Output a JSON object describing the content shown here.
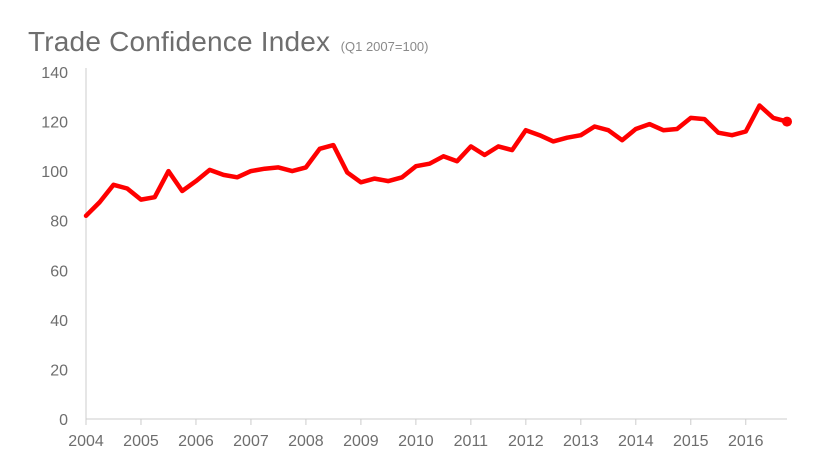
{
  "chart_data": {
    "type": "line",
    "title": "Trade Confidence Index",
    "subtitle": "(Q1 2007=100)",
    "xlabel": "",
    "ylabel": "",
    "ylim": [
      0,
      140
    ],
    "xlim": [
      2004.0,
      2016.75
    ],
    "y_ticks": [
      0,
      20,
      40,
      60,
      80,
      100,
      120,
      140
    ],
    "x_ticks": [
      2004,
      2005,
      2006,
      2007,
      2008,
      2009,
      2010,
      2011,
      2012,
      2013,
      2014,
      2015,
      2016
    ],
    "grid": false,
    "legend": "none",
    "colors": {
      "line": "#ff0000",
      "axis": "#cccccc",
      "text": "#6e6e6e"
    },
    "series": [
      {
        "x": [
          2004.0,
          2004.25,
          2004.5,
          2004.75,
          2005.0,
          2005.25,
          2005.5,
          2005.75,
          2006.0,
          2006.25,
          2006.5,
          2006.75,
          2007.0,
          2007.25,
          2007.5,
          2007.75,
          2008.0,
          2008.25,
          2008.5,
          2008.75,
          2009.0,
          2009.25,
          2009.5,
          2009.75,
          2010.0,
          2010.25,
          2010.5,
          2010.75,
          2011.0,
          2011.25,
          2011.5,
          2011.75,
          2012.0,
          2012.25,
          2012.5,
          2012.75,
          2013.0,
          2013.25,
          2013.5,
          2013.75,
          2014.0,
          2014.25,
          2014.5,
          2014.75,
          2015.0,
          2015.25,
          2015.5,
          2015.75,
          2016.0,
          2016.25,
          2016.5,
          2016.75
        ],
        "values": [
          82,
          87.5,
          94.5,
          93,
          88.5,
          89.5,
          100,
          92,
          96,
          100.5,
          98.5,
          97.5,
          100,
          101,
          101.5,
          100,
          101.5,
          109,
          110.5,
          99.5,
          95.5,
          97,
          96,
          97.5,
          102,
          103,
          106,
          104,
          110,
          106.5,
          110,
          108.5,
          116.5,
          114.5,
          112,
          113.5,
          114.5,
          118,
          116.5,
          112.5,
          117,
          119,
          116.5,
          117,
          121.5,
          121,
          115.5,
          114.5,
          116,
          126.5,
          121.5,
          120
        ]
      }
    ]
  }
}
